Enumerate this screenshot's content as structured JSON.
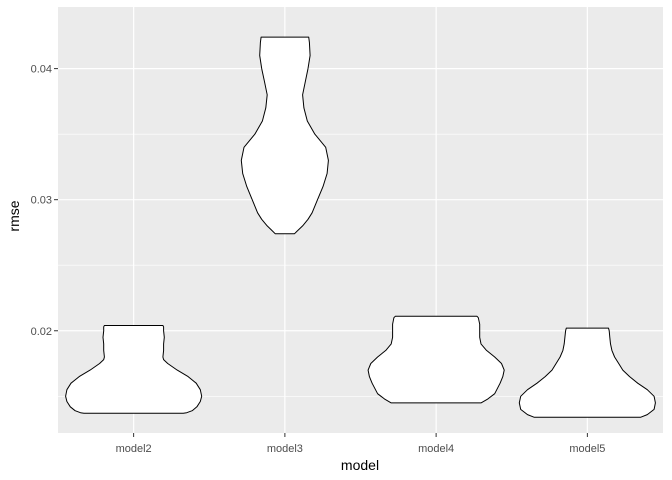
{
  "chart_data": {
    "type": "violin",
    "title": "",
    "xlabel": "model",
    "ylabel": "rmse",
    "categories": [
      "model2",
      "model3",
      "model4",
      "model5"
    ],
    "ylim": [
      0.0122,
      0.0447
    ],
    "y_ticks": [
      0.02,
      0.03,
      0.04
    ],
    "y_tick_labels": [
      "0.02",
      "0.03",
      "0.04"
    ],
    "grid": true,
    "panel_background": "#ebebeb",
    "grid_color": "#ffffff",
    "violin_fill": "#ffffff",
    "violin_outline": "#000000",
    "series": [
      {
        "category": "model2",
        "min": 0.0137,
        "max": 0.0204,
        "profile": [
          [
            0.0137,
            0.73
          ],
          [
            0.01375,
            0.78
          ],
          [
            0.0139,
            0.86
          ],
          [
            0.0142,
            0.93
          ],
          [
            0.0146,
            0.98
          ],
          [
            0.015,
            1.0
          ],
          [
            0.0155,
            0.98
          ],
          [
            0.016,
            0.92
          ],
          [
            0.0165,
            0.8
          ],
          [
            0.017,
            0.64
          ],
          [
            0.0175,
            0.5
          ],
          [
            0.0178,
            0.44
          ],
          [
            0.018,
            0.43
          ],
          [
            0.0185,
            0.44
          ],
          [
            0.019,
            0.44
          ],
          [
            0.0195,
            0.45
          ],
          [
            0.02,
            0.44
          ],
          [
            0.0203,
            0.44
          ],
          [
            0.0204,
            0.43
          ]
        ]
      },
      {
        "category": "model3",
        "min": 0.0274,
        "max": 0.0424,
        "profile": [
          [
            0.0274,
            0.14
          ],
          [
            0.0276,
            0.18
          ],
          [
            0.028,
            0.26
          ],
          [
            0.0285,
            0.34
          ],
          [
            0.029,
            0.4
          ],
          [
            0.03,
            0.48
          ],
          [
            0.031,
            0.56
          ],
          [
            0.032,
            0.62
          ],
          [
            0.033,
            0.64
          ],
          [
            0.034,
            0.6
          ],
          [
            0.035,
            0.44
          ],
          [
            0.036,
            0.33
          ],
          [
            0.037,
            0.28
          ],
          [
            0.038,
            0.26
          ],
          [
            0.039,
            0.3
          ],
          [
            0.04,
            0.34
          ],
          [
            0.041,
            0.37
          ],
          [
            0.042,
            0.36
          ],
          [
            0.0424,
            0.35
          ]
        ]
      },
      {
        "category": "model4",
        "min": 0.0145,
        "max": 0.0211,
        "profile": [
          [
            0.0145,
            0.66
          ],
          [
            0.0148,
            0.76
          ],
          [
            0.0152,
            0.86
          ],
          [
            0.016,
            0.94
          ],
          [
            0.0165,
            0.98
          ],
          [
            0.017,
            1.0
          ],
          [
            0.0175,
            0.96
          ],
          [
            0.018,
            0.86
          ],
          [
            0.0185,
            0.74
          ],
          [
            0.019,
            0.66
          ],
          [
            0.0195,
            0.64
          ],
          [
            0.02,
            0.64
          ],
          [
            0.0205,
            0.64
          ],
          [
            0.021,
            0.62
          ],
          [
            0.0211,
            0.6
          ]
        ]
      },
      {
        "category": "model5",
        "min": 0.0134,
        "max": 0.0202,
        "profile": [
          [
            0.0134,
            0.78
          ],
          [
            0.0136,
            0.88
          ],
          [
            0.014,
            0.98
          ],
          [
            0.0145,
            1.0
          ],
          [
            0.015,
            0.98
          ],
          [
            0.0155,
            0.88
          ],
          [
            0.016,
            0.74
          ],
          [
            0.0165,
            0.62
          ],
          [
            0.017,
            0.52
          ],
          [
            0.0175,
            0.46
          ],
          [
            0.018,
            0.4
          ],
          [
            0.0185,
            0.36
          ],
          [
            0.019,
            0.34
          ],
          [
            0.0195,
            0.33
          ],
          [
            0.02,
            0.32
          ],
          [
            0.0202,
            0.31
          ]
        ]
      }
    ]
  }
}
